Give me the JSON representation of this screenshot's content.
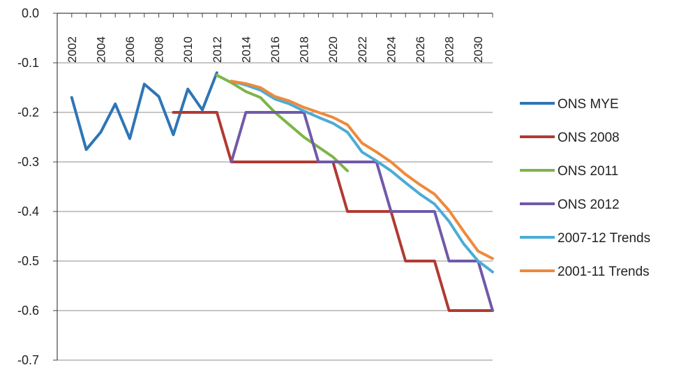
{
  "chart_data": {
    "type": "line",
    "title": "",
    "xlabel": "",
    "ylabel": "",
    "x_ticks": [
      "2002",
      "2004",
      "2006",
      "2008",
      "2010",
      "2012",
      "2014",
      "2016",
      "2018",
      "2020",
      "2022",
      "2024",
      "2026",
      "2028",
      "2030"
    ],
    "y_ticks": [
      "0.0",
      "-0.1",
      "-0.2",
      "-0.3",
      "-0.4",
      "-0.5",
      "-0.6",
      "-0.7"
    ],
    "xlim": [
      2001,
      2031
    ],
    "ylim": [
      -0.7,
      0
    ],
    "grid": "horizontal",
    "legend_position": "right",
    "series": [
      {
        "name": "ONS MYE",
        "color": "#2e75b6",
        "x": [
          2002,
          2003,
          2004,
          2005,
          2006,
          2007,
          2008,
          2009,
          2010,
          2011,
          2012
        ],
        "y": [
          -0.17,
          -0.275,
          -0.24,
          -0.183,
          -0.253,
          -0.143,
          -0.168,
          -0.245,
          -0.153,
          -0.195,
          -0.12
        ]
      },
      {
        "name": "ONS 2008",
        "color": "#b03a32",
        "x": [
          2009,
          2012,
          2013,
          2020,
          2021,
          2024,
          2025,
          2027,
          2028,
          2031
        ],
        "y": [
          -0.2,
          -0.2,
          -0.3,
          -0.3,
          -0.4,
          -0.4,
          -0.5,
          -0.5,
          -0.6,
          -0.6
        ]
      },
      {
        "name": "ONS 2011",
        "color": "#7db547",
        "x": [
          2012,
          2013,
          2014,
          2015,
          2016,
          2017,
          2018,
          2019,
          2020,
          2021
        ],
        "y": [
          -0.125,
          -0.14,
          -0.158,
          -0.17,
          -0.2,
          -0.225,
          -0.25,
          -0.27,
          -0.29,
          -0.318
        ]
      },
      {
        "name": "ONS 2012",
        "color": "#7159a8",
        "x": [
          2013,
          2014,
          2016,
          2018,
          2019,
          2023,
          2024,
          2027,
          2028,
          2030,
          2031
        ],
        "y": [
          -0.3,
          -0.2,
          -0.2,
          -0.2,
          -0.3,
          -0.3,
          -0.4,
          -0.4,
          -0.5,
          -0.5,
          -0.6
        ]
      },
      {
        "name": "2007-12 Trends",
        "color": "#4bacd6",
        "x": [
          2013,
          2014,
          2015,
          2016,
          2017,
          2018,
          2019,
          2020,
          2021,
          2022,
          2023,
          2024,
          2025,
          2026,
          2027,
          2028,
          2029,
          2030,
          2031
        ],
        "y": [
          -0.137,
          -0.145,
          -0.155,
          -0.173,
          -0.183,
          -0.197,
          -0.21,
          -0.222,
          -0.24,
          -0.28,
          -0.298,
          -0.318,
          -0.342,
          -0.365,
          -0.385,
          -0.42,
          -0.465,
          -0.5,
          -0.522
        ]
      },
      {
        "name": "2001-11 Trends",
        "color": "#ed8a3c",
        "x": [
          2013,
          2014,
          2015,
          2016,
          2017,
          2018,
          2019,
          2020,
          2021,
          2022,
          2023,
          2024,
          2025,
          2026,
          2027,
          2028,
          2029,
          2030,
          2031
        ],
        "y": [
          -0.137,
          -0.142,
          -0.15,
          -0.168,
          -0.177,
          -0.19,
          -0.2,
          -0.21,
          -0.225,
          -0.262,
          -0.28,
          -0.3,
          -0.325,
          -0.346,
          -0.365,
          -0.398,
          -0.44,
          -0.48,
          -0.495
        ]
      }
    ]
  }
}
